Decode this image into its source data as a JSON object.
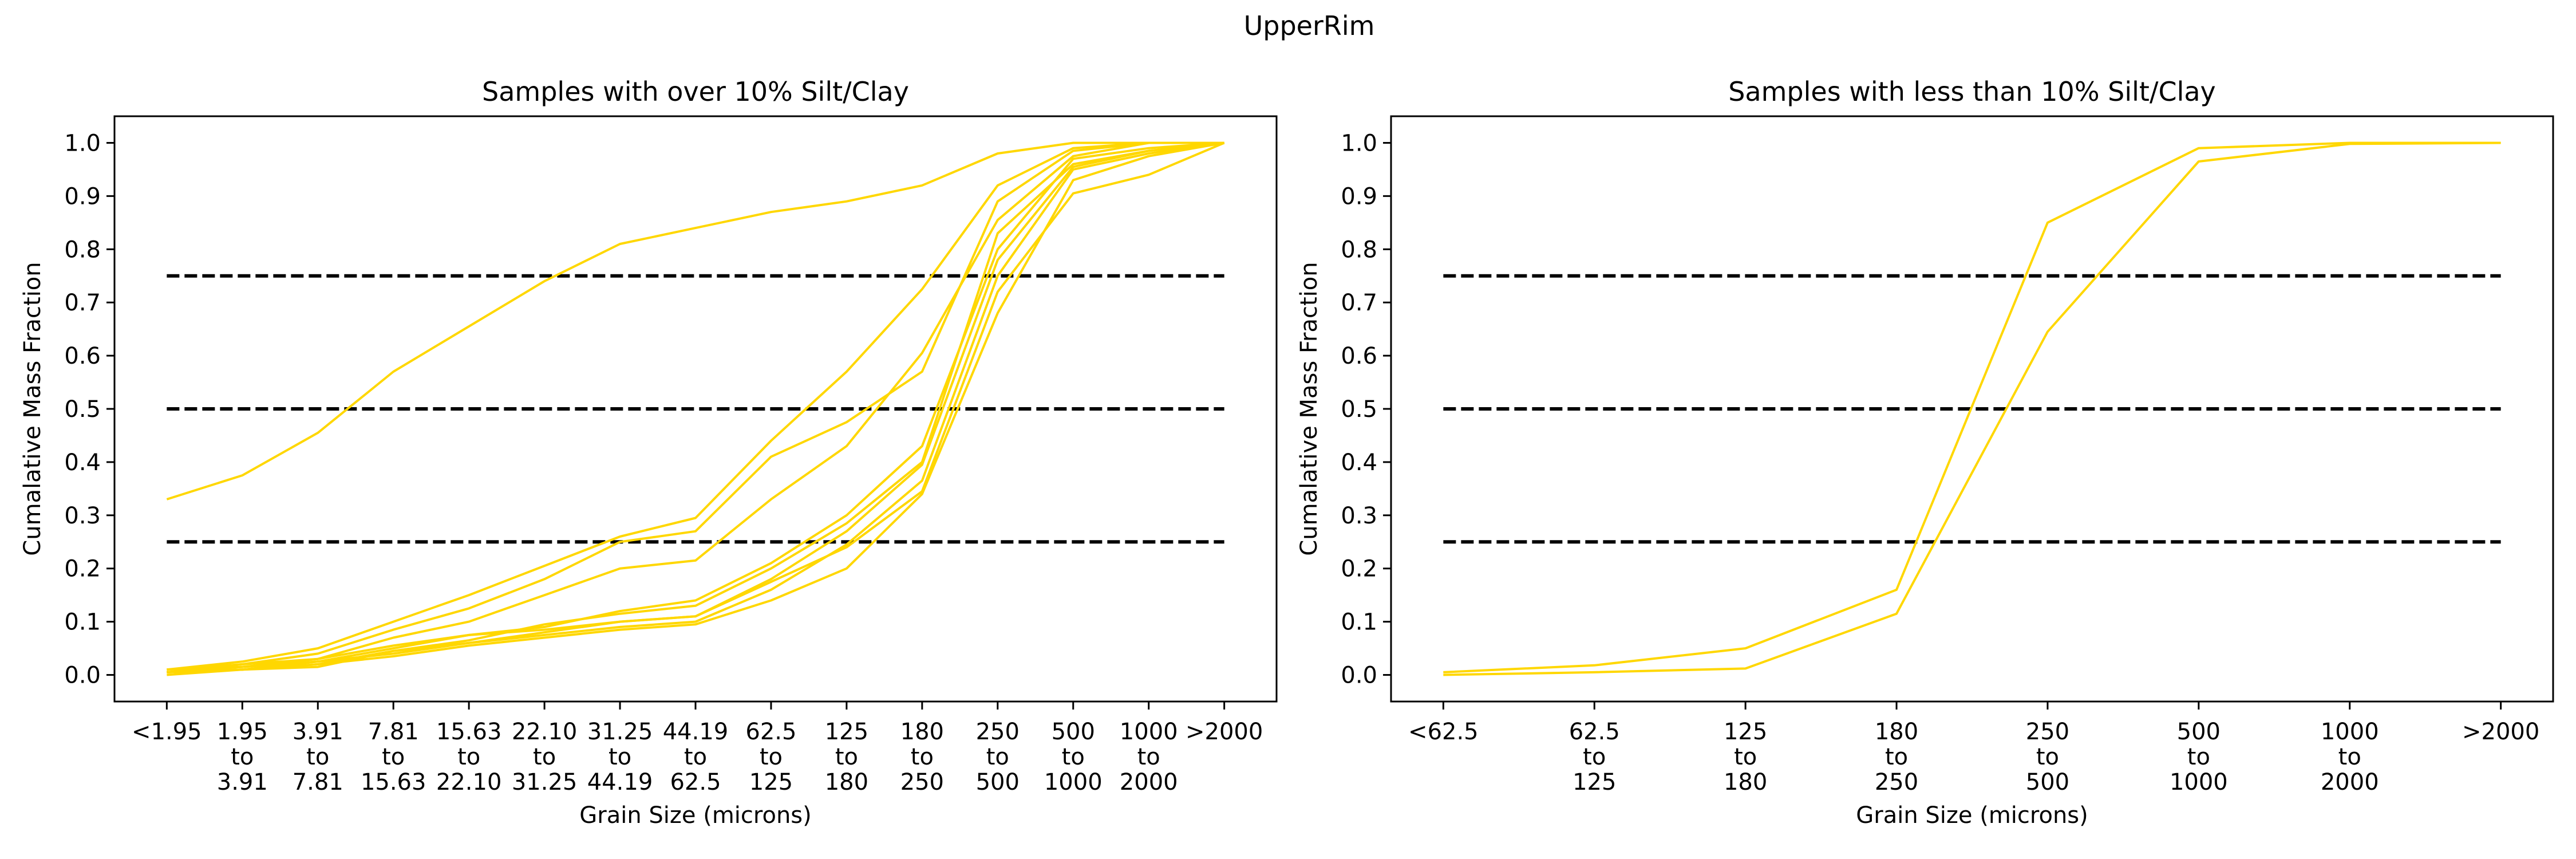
{
  "figure_title": "UpperRim",
  "colors": {
    "series": "#ffd700",
    "reference": "#000000",
    "axes": "#000000",
    "background": "#ffffff"
  },
  "chart_data": [
    {
      "type": "line",
      "title": "Samples with over 10% Silt/Clay",
      "xlabel": "Grain Size (microns)",
      "ylabel": "Cumalative Mass Fraction",
      "categories": [
        "<1.95",
        "1.95\nto\n3.91",
        "3.91\nto\n7.81",
        "7.81\nto\n15.63",
        "15.63\nto\n22.10",
        "22.10\nto\n31.25",
        "31.25\nto\n44.19",
        "44.19\nto\n62.5",
        "62.5\nto\n125",
        "125\nto\n180",
        "180\nto\n250",
        "250\nto\n500",
        "500\nto\n1000",
        "1000\nto\n2000",
        ">2000"
      ],
      "ylim": [
        -0.05,
        1.05
      ],
      "yticks": [
        "0.0",
        "0.1",
        "0.2",
        "0.3",
        "0.4",
        "0.5",
        "0.6",
        "0.7",
        "0.8",
        "0.9",
        "1.0"
      ],
      "reference_lines": [
        0.25,
        0.5,
        0.75
      ],
      "grid": false,
      "legend": "none",
      "series": [
        {
          "values": [
            0.33,
            0.375,
            0.455,
            0.57,
            0.655,
            0.74,
            0.81,
            0.84,
            0.87,
            0.89,
            0.92,
            0.98,
            1.0,
            1.0,
            1.0
          ]
        },
        {
          "values": [
            0.01,
            0.025,
            0.05,
            0.1,
            0.15,
            0.205,
            0.26,
            0.295,
            0.44,
            0.57,
            0.725,
            0.92,
            0.99,
            1.0,
            1.0
          ]
        },
        {
          "values": [
            0.005,
            0.02,
            0.04,
            0.085,
            0.125,
            0.18,
            0.25,
            0.27,
            0.41,
            0.475,
            0.57,
            0.89,
            0.985,
            1.0,
            1.0
          ]
        },
        {
          "values": [
            0.005,
            0.015,
            0.03,
            0.07,
            0.1,
            0.15,
            0.2,
            0.215,
            0.33,
            0.43,
            0.605,
            0.855,
            0.975,
            1.0,
            1.0
          ]
        },
        {
          "values": [
            0.01,
            0.015,
            0.025,
            0.05,
            0.075,
            0.09,
            0.12,
            0.14,
            0.21,
            0.3,
            0.43,
            0.8,
            0.97,
            0.99,
            1.0
          ]
        },
        {
          "values": [
            0.005,
            0.01,
            0.02,
            0.045,
            0.065,
            0.095,
            0.115,
            0.13,
            0.2,
            0.285,
            0.4,
            0.83,
            0.96,
            0.985,
            1.0
          ]
        },
        {
          "values": [
            0.0,
            0.01,
            0.015,
            0.045,
            0.06,
            0.08,
            0.1,
            0.11,
            0.18,
            0.27,
            0.395,
            0.78,
            0.955,
            0.985,
            1.0
          ]
        },
        {
          "values": [
            0.005,
            0.01,
            0.025,
            0.04,
            0.06,
            0.075,
            0.09,
            0.1,
            0.16,
            0.245,
            0.365,
            0.75,
            0.95,
            0.98,
            1.0
          ]
        },
        {
          "values": [
            0.005,
            0.01,
            0.02,
            0.035,
            0.055,
            0.07,
            0.085,
            0.095,
            0.14,
            0.2,
            0.34,
            0.68,
            0.93,
            0.975,
            1.0
          ]
        },
        {
          "values": [
            0.01,
            0.02,
            0.03,
            0.055,
            0.075,
            0.085,
            0.1,
            0.11,
            0.175,
            0.24,
            0.345,
            0.72,
            0.905,
            0.94,
            1.0
          ]
        }
      ]
    },
    {
      "type": "line",
      "title": "Samples with less than 10% Silt/Clay",
      "xlabel": "Grain Size (microns)",
      "ylabel": "Cumalative Mass Fraction",
      "categories": [
        "<62.5",
        "62.5\nto\n125",
        "125\nto\n180",
        "180\nto\n250",
        "250\nto\n500",
        "500\nto\n1000",
        "1000\nto\n2000",
        ">2000"
      ],
      "ylim": [
        -0.05,
        1.05
      ],
      "yticks": [
        "0.0",
        "0.1",
        "0.2",
        "0.3",
        "0.4",
        "0.5",
        "0.6",
        "0.7",
        "0.8",
        "0.9",
        "1.0"
      ],
      "reference_lines": [
        0.25,
        0.5,
        0.75
      ],
      "grid": false,
      "legend": "none",
      "series": [
        {
          "values": [
            0.005,
            0.018,
            0.05,
            0.16,
            0.85,
            0.99,
            1.0,
            1.0
          ]
        },
        {
          "values": [
            0.0,
            0.005,
            0.012,
            0.115,
            0.645,
            0.965,
            0.998,
            1.0
          ]
        }
      ]
    }
  ]
}
